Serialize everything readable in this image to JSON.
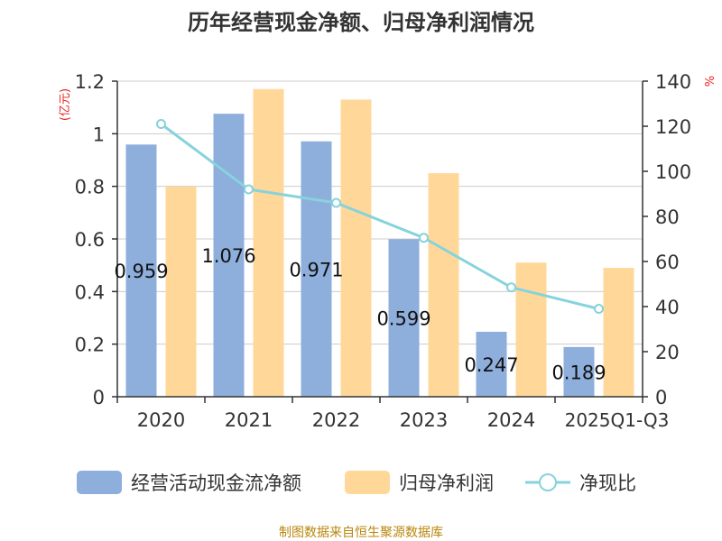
{
  "chart_data": {
    "type": "bar",
    "title": "历年经营现金净额、归母净利润情况",
    "categories": [
      "2020",
      "2021",
      "2022",
      "2023",
      "2024",
      "2025Q1-Q3"
    ],
    "series": [
      {
        "name": "经营活动现金流净额",
        "type": "bar",
        "axis": "left",
        "values": [
          0.959,
          1.076,
          0.971,
          0.599,
          0.247,
          0.189
        ],
        "data_labels": [
          "0.959",
          "1.076",
          "0.971",
          "0.599",
          "0.247",
          "0.189"
        ],
        "color": "#8eaedc"
      },
      {
        "name": "归母净利润",
        "type": "bar",
        "axis": "left",
        "values": [
          0.8,
          1.17,
          1.13,
          0.85,
          0.51,
          0.49
        ],
        "color": "#ffd899"
      },
      {
        "name": "净现比",
        "type": "line",
        "axis": "right",
        "values": [
          121,
          92,
          86,
          70.5,
          48.5,
          39
        ],
        "color": "#86d3dc"
      }
    ],
    "left_axis": {
      "unit_label": "(亿元)",
      "ylim": [
        0,
        1.2
      ],
      "ticks": [
        "0",
        "0.2",
        "0.4",
        "0.6",
        "0.8",
        "1",
        "1.2"
      ],
      "tick_values": [
        0,
        0.2,
        0.4,
        0.6,
        0.8,
        1,
        1.2
      ]
    },
    "right_axis": {
      "unit_label": "%",
      "ylim": [
        0,
        140
      ],
      "ticks": [
        "0",
        "20",
        "40",
        "60",
        "80",
        "100",
        "120",
        "140"
      ],
      "tick_values": [
        0,
        20,
        40,
        60,
        80,
        100,
        120,
        140
      ]
    },
    "grid": true,
    "legend_position": "bottom",
    "source_note": "制图数据来自恒生聚源数据库",
    "colors": {
      "title": "#333333",
      "axis_text": "#333333",
      "unit_text": "#e8211b",
      "grid": "#cccccc",
      "axis_line": "#333333",
      "source_note": "#b8860b"
    }
  }
}
